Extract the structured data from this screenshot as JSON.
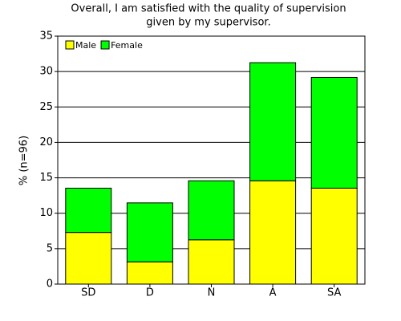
{
  "chart_data": {
    "type": "stacked-bar",
    "title": [
      "Overall, I am satisfied with the quality of supervision",
      "given by my supervisor."
    ],
    "y_label": "% (n=96)",
    "categories": [
      "SD",
      "D",
      "N",
      "A",
      "SA"
    ],
    "series": [
      {
        "name": "Male",
        "color": "#ffff00",
        "values": [
          7.29,
          3.13,
          6.25,
          14.58,
          13.54
        ]
      },
      {
        "name": "Female",
        "color": "#00ff00",
        "values": [
          6.25,
          8.33,
          8.33,
          16.67,
          15.63
        ]
      }
    ],
    "ylim": [
      0,
      35
    ],
    "yticks": [
      0,
      5,
      10,
      15,
      20,
      25,
      30,
      35
    ],
    "grid": true,
    "legend": "top-left"
  }
}
